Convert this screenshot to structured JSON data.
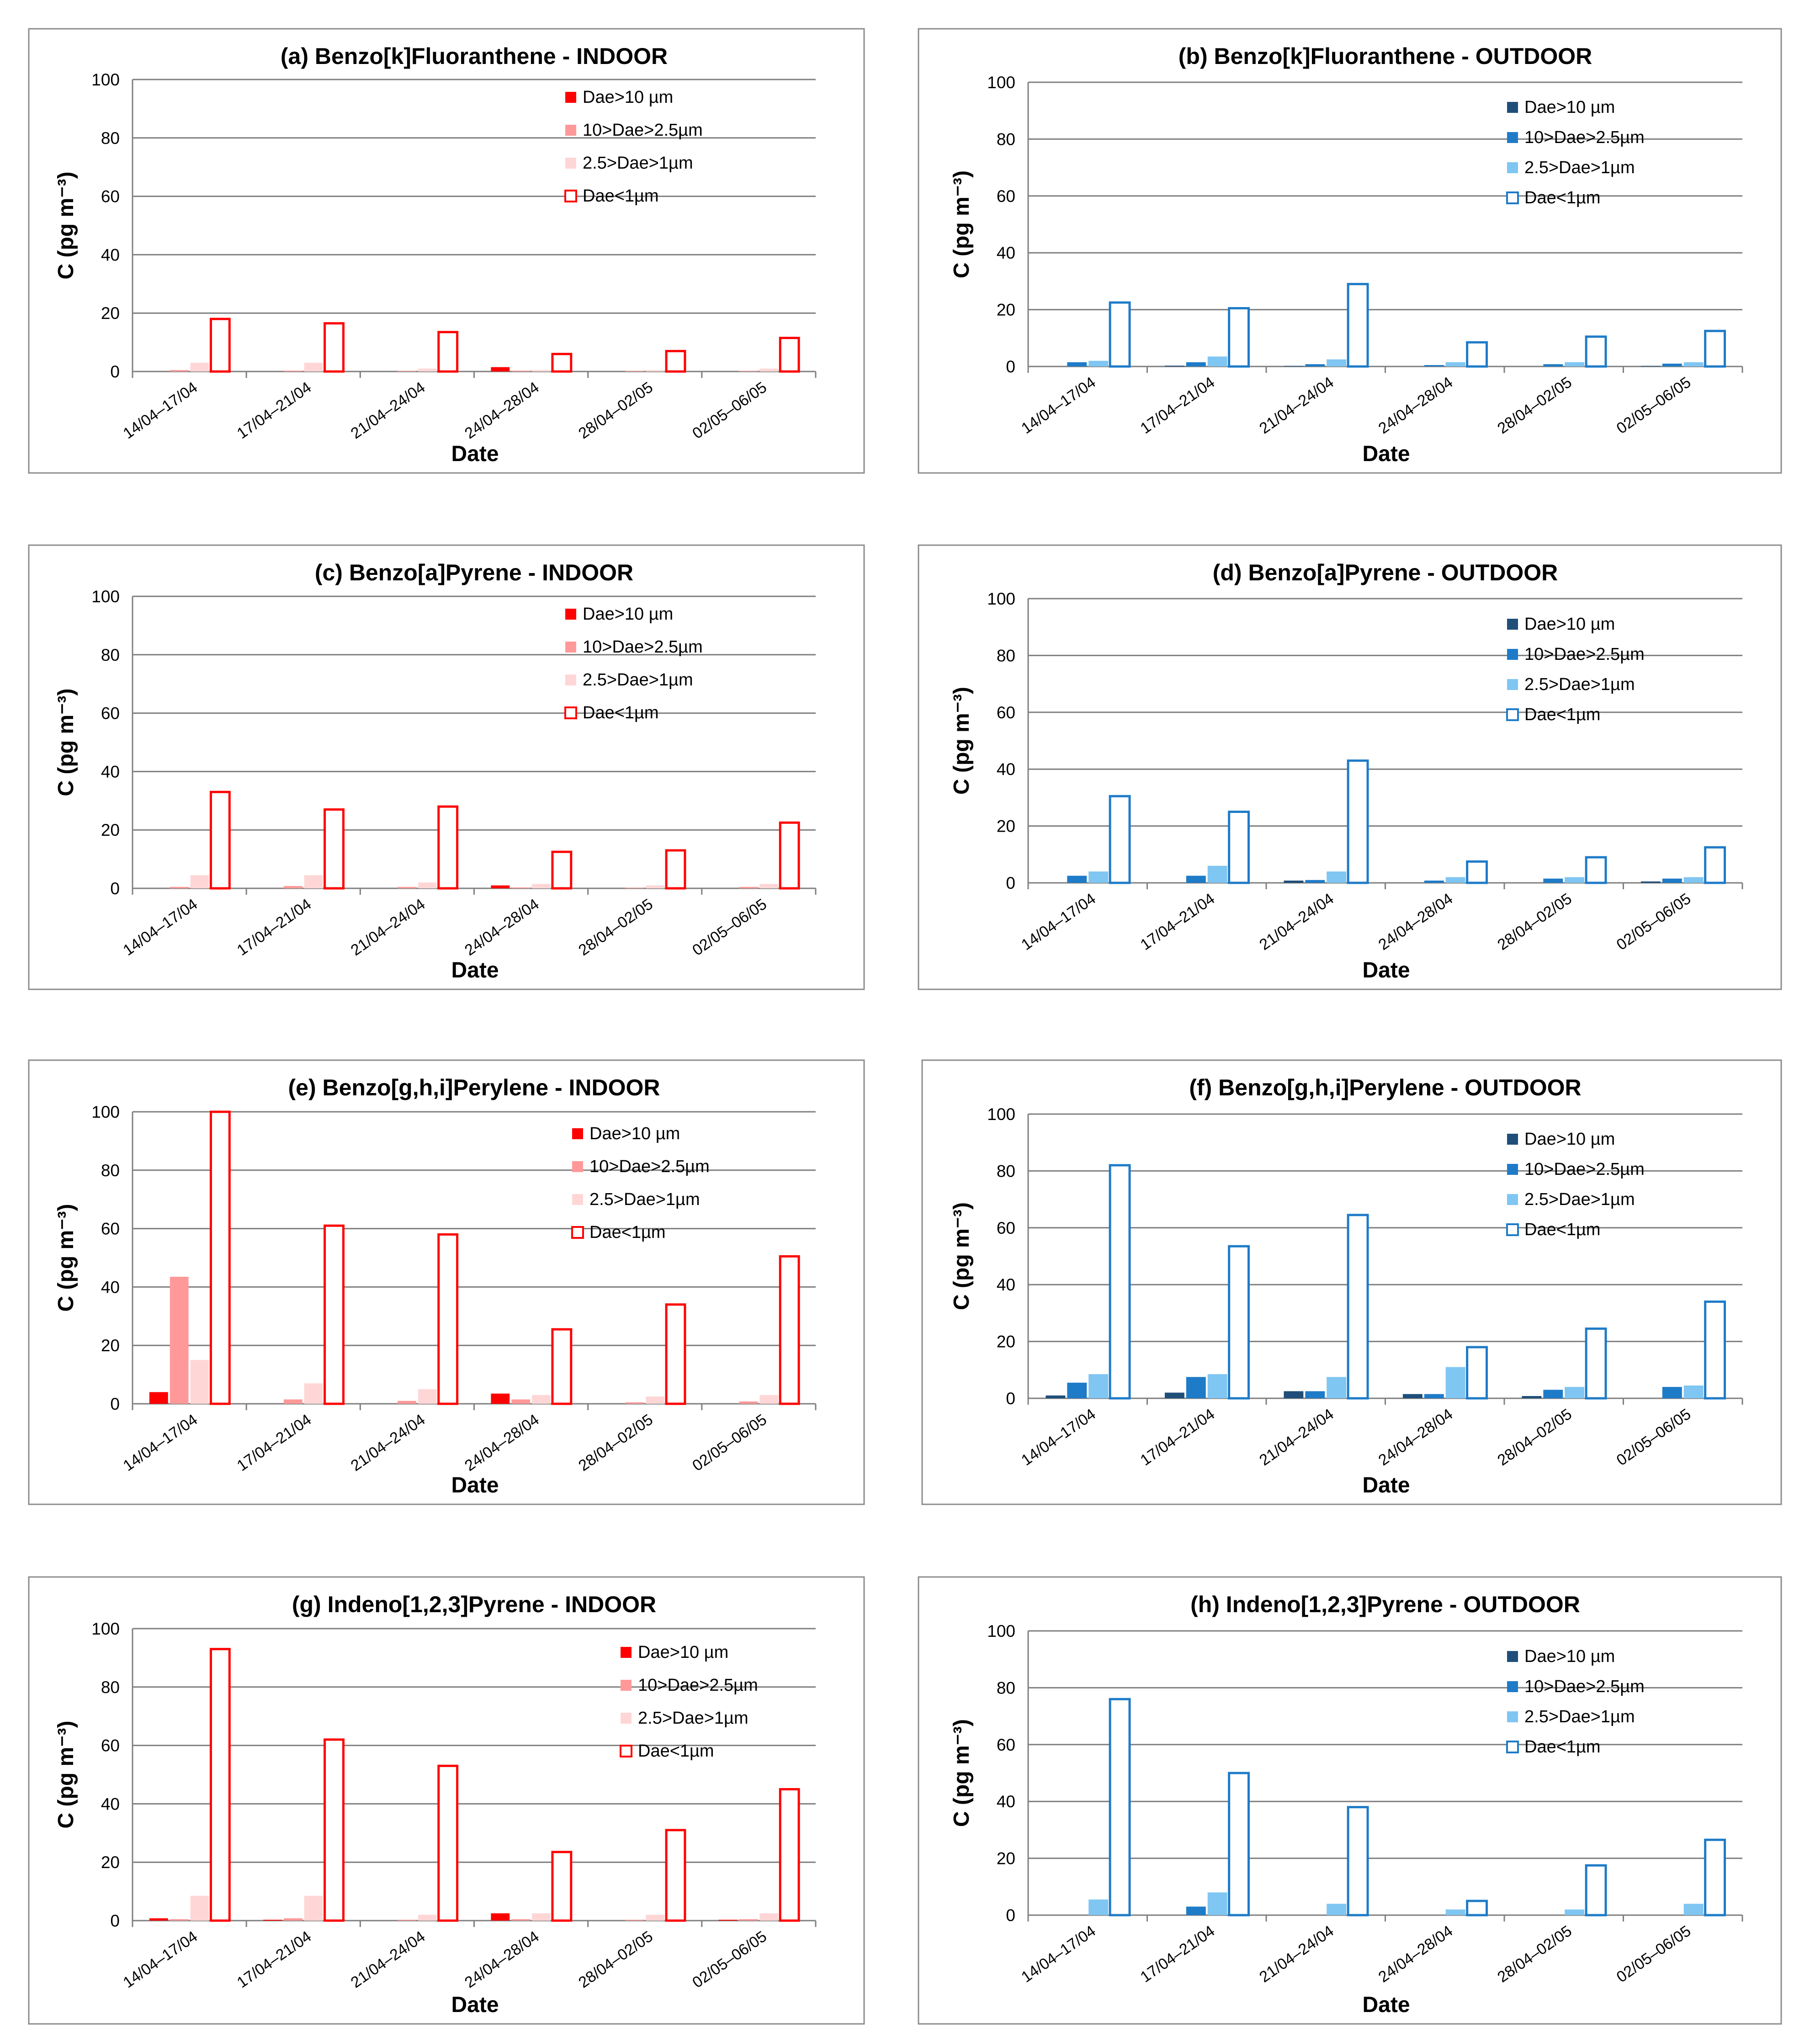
{
  "common": {
    "ylabel": "C (pg m⁻³)",
    "xlabel": "Date",
    "categories": [
      "14/04–17/04",
      "17/04–21/04",
      "21/04–24/04",
      "24/04–28/04",
      "28/04–02/05",
      "02/05–06/05"
    ],
    "legend": [
      "Dae>10 µm",
      "10>Dae>2.5µm",
      "2.5>Dae>1µm",
      "Dae<1µm"
    ],
    "ylim": [
      0,
      100
    ],
    "yticks": [
      0,
      20,
      40,
      60,
      80,
      100
    ]
  },
  "palettes": {
    "indoor": [
      "#ff0000",
      "#ff9999",
      "#ffd6d6",
      "#ff0000"
    ],
    "outdoor": [
      "#1f4e79",
      "#1e7bc8",
      "#7fc6f2",
      "#1e7bc8"
    ]
  },
  "chart_data": [
    {
      "id": "a",
      "type": "bar",
      "palette": "indoor",
      "title": "(a) Benzo[k]Fluoranthene - INDOOR",
      "series": [
        {
          "name": "Dae>10 µm",
          "values": [
            0,
            0,
            0,
            1.5,
            0,
            0
          ]
        },
        {
          "name": "10>Dae>2.5µm",
          "values": [
            0.5,
            0.3,
            0.2,
            0.3,
            0.2,
            0.2
          ]
        },
        {
          "name": "2.5>Dae>1µm",
          "values": [
            3,
            3,
            1,
            0.5,
            0.5,
            1
          ]
        },
        {
          "name": "Dae<1µm",
          "values": [
            18,
            16.5,
            13.5,
            6,
            7,
            11.5
          ]
        }
      ]
    },
    {
      "id": "b",
      "type": "bar",
      "palette": "outdoor",
      "title": "(b) Benzo[k]Fluoranthene - OUTDOOR",
      "series": [
        {
          "name": "Dae>10 µm",
          "values": [
            0,
            0.3,
            0.2,
            0,
            0,
            0.2
          ]
        },
        {
          "name": "10>Dae>2.5µm",
          "values": [
            1.5,
            1.5,
            0.8,
            0.5,
            0.8,
            1
          ]
        },
        {
          "name": "2.5>Dae>1µm",
          "values": [
            2,
            3.5,
            2.5,
            1.5,
            1.5,
            1.5
          ]
        },
        {
          "name": "Dae<1µm",
          "values": [
            22.5,
            20.5,
            29,
            8.5,
            10.5,
            12.5
          ]
        }
      ]
    },
    {
      "id": "c",
      "type": "bar",
      "palette": "indoor",
      "title": "(c) Benzo[a]Pyrene - INDOOR",
      "series": [
        {
          "name": "Dae>10 µm",
          "values": [
            0,
            0,
            0,
            1,
            0,
            0
          ]
        },
        {
          "name": "10>Dae>2.5µm",
          "values": [
            0.5,
            0.8,
            0.5,
            0.3,
            0.2,
            0.5
          ]
        },
        {
          "name": "2.5>Dae>1µm",
          "values": [
            4.5,
            4.5,
            2,
            1.5,
            1,
            1.5
          ]
        },
        {
          "name": "Dae<1µm",
          "values": [
            33,
            27,
            28,
            12.5,
            13,
            22.5
          ]
        }
      ]
    },
    {
      "id": "d",
      "type": "bar",
      "palette": "outdoor",
      "title": "(d) Benzo[a]Pyrene - OUTDOOR",
      "series": [
        {
          "name": "Dae>10 µm",
          "values": [
            0,
            0,
            0.8,
            0,
            0,
            0.5
          ]
        },
        {
          "name": "10>Dae>2.5µm",
          "values": [
            2.5,
            2.5,
            1,
            0.8,
            1.5,
            1.5
          ]
        },
        {
          "name": "2.5>Dae>1µm",
          "values": [
            4,
            6,
            4,
            2,
            2,
            2
          ]
        },
        {
          "name": "Dae<1µm",
          "values": [
            30.5,
            25,
            43,
            7.5,
            9,
            12.5
          ]
        }
      ]
    },
    {
      "id": "e",
      "type": "bar",
      "palette": "indoor",
      "title": "(e) Benzo[g,h,i]Perylene - INDOOR",
      "series": [
        {
          "name": "Dae>10 µm",
          "values": [
            4,
            0,
            0,
            3.5,
            0,
            0
          ]
        },
        {
          "name": "10>Dae>2.5µm",
          "values": [
            43.5,
            1.5,
            1,
            1.5,
            0.5,
            0.8
          ]
        },
        {
          "name": "2.5>Dae>1µm",
          "values": [
            15,
            7,
            5,
            3,
            2.5,
            3
          ]
        },
        {
          "name": "Dae<1µm",
          "values": [
            100,
            61,
            58,
            25.5,
            34,
            50.5
          ]
        }
      ]
    },
    {
      "id": "f",
      "type": "bar",
      "palette": "outdoor",
      "title": "(f) Benzo[g,h,i]Perylene - OUTDOOR",
      "series": [
        {
          "name": "Dae>10 µm",
          "values": [
            1,
            2,
            2.5,
            1.5,
            0.8,
            0
          ]
        },
        {
          "name": "10>Dae>2.5µm",
          "values": [
            5.5,
            7.5,
            2.5,
            1.5,
            3,
            4
          ]
        },
        {
          "name": "2.5>Dae>1µm",
          "values": [
            8.5,
            8.5,
            7.5,
            11,
            4,
            4.5
          ]
        },
        {
          "name": "Dae<1µm",
          "values": [
            82,
            53.5,
            64.5,
            18,
            24.5,
            34
          ]
        }
      ]
    },
    {
      "id": "g",
      "type": "bar",
      "palette": "indoor",
      "title": "(g) Indeno[1,2,3]Pyrene - INDOOR",
      "series": [
        {
          "name": "Dae>10 µm",
          "values": [
            0.8,
            0.3,
            0,
            2.5,
            0,
            0.3
          ]
        },
        {
          "name": "10>Dae>2.5µm",
          "values": [
            0.5,
            0.8,
            0.3,
            0.5,
            0.3,
            0.5
          ]
        },
        {
          "name": "2.5>Dae>1µm",
          "values": [
            8.5,
            8.5,
            2,
            2.5,
            2,
            2.5
          ]
        },
        {
          "name": "Dae<1µm",
          "values": [
            93,
            62,
            53,
            23.5,
            31,
            45
          ]
        }
      ]
    },
    {
      "id": "h",
      "type": "bar",
      "palette": "outdoor",
      "title": "(h) Indeno[1,2,3]Pyrene - OUTDOOR",
      "series": [
        {
          "name": "Dae>10 µm",
          "values": [
            0,
            0,
            0,
            0,
            0,
            0
          ]
        },
        {
          "name": "10>Dae>2.5µm",
          "values": [
            0,
            3,
            0,
            0,
            0,
            0
          ]
        },
        {
          "name": "2.5>Dae>1µm",
          "values": [
            5.5,
            8,
            4,
            2,
            2,
            4
          ]
        },
        {
          "name": "Dae<1µm",
          "values": [
            76,
            50,
            38,
            5,
            17.5,
            26.5
          ]
        }
      ]
    }
  ]
}
